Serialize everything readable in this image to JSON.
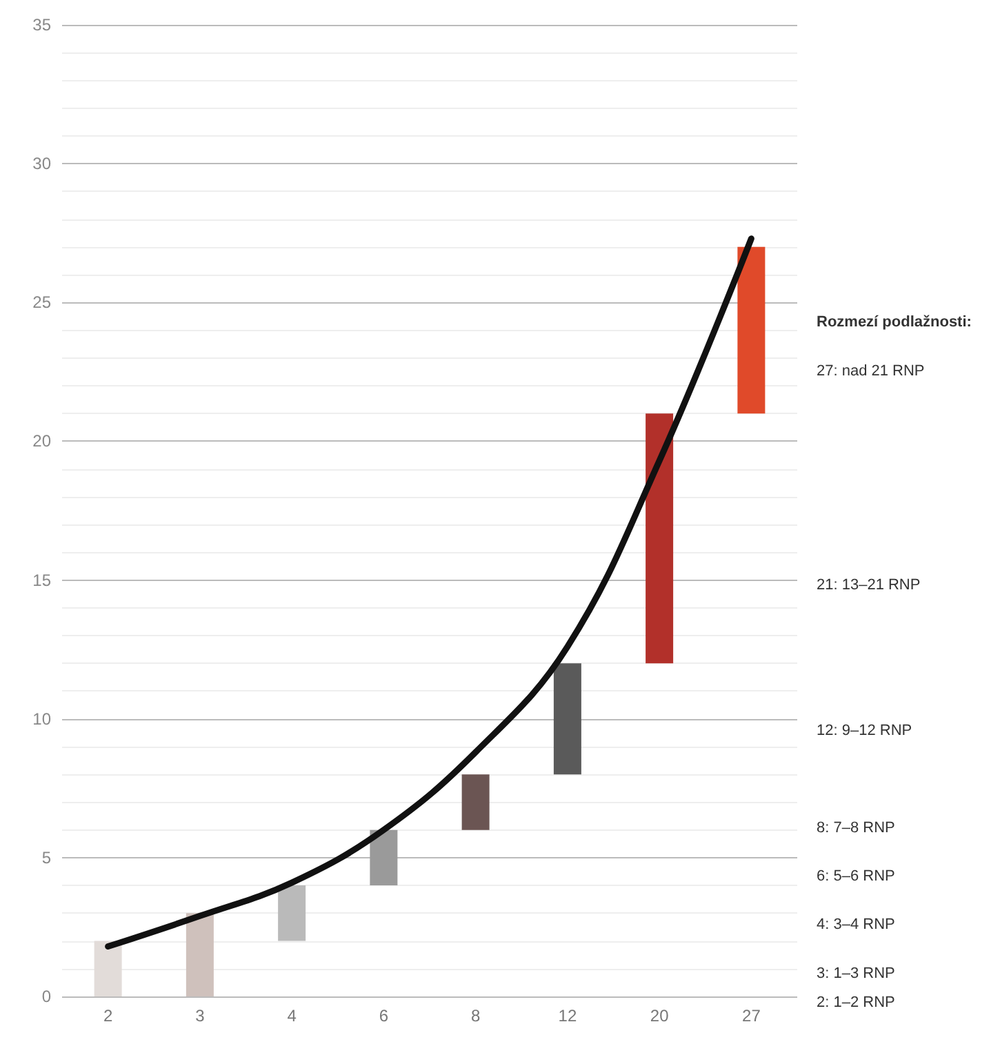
{
  "chart_data": {
    "type": "bar",
    "categories": [
      "2",
      "3",
      "4",
      "6",
      "8",
      "12",
      "20",
      "27"
    ],
    "series": [
      {
        "values": [
          2,
          3,
          2,
          2,
          2,
          4,
          9,
          6
        ],
        "base": [
          0,
          0,
          2,
          4,
          6,
          8,
          12,
          21
        ],
        "colors": [
          "#e2dcd9",
          "#cfc1bc",
          "#bababa",
          "#9a9a9a",
          "#6b5553",
          "#5a5a5a",
          "#b2302a",
          "#e04a2a"
        ]
      },
      {
        "type": "line",
        "color": "#111111",
        "values": [
          1.8,
          2.9,
          4.1,
          6.0,
          8.8,
          12.6,
          19.3,
          27.3
        ],
        "marker": "none",
        "line_style": "solid"
      }
    ],
    "ylim": [
      0,
      35
    ],
    "yticks": [
      0,
      5,
      10,
      15,
      20,
      25,
      30,
      35
    ],
    "grid": "y",
    "annotations": [
      "Rozmezí podlažnosti:",
      "27: nad 21 RNP",
      "21: 13–21 RNP",
      "12: 9–12 RNP",
      "8: 7–8 RNP",
      "6: 5–6 RNP",
      "4: 3–4 RNP",
      "3: 1–3 RNP",
      "2: 1–2 RNP"
    ]
  }
}
